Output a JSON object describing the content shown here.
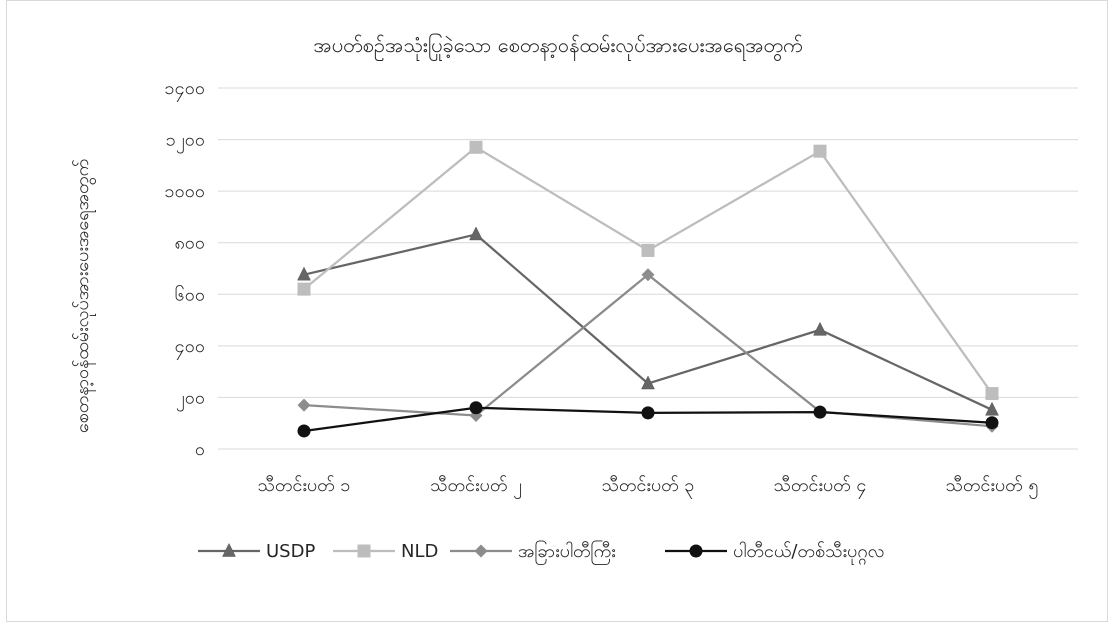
{
  "chart_data": {
    "type": "line",
    "title": "အပတ်စဉ်အသုံးပြုခဲ့သော စေတနာ့ဝန်ထမ်းလုပ်အားပေးအရေအတွက်",
    "ylabel": "စေတနာ့ဝန်ထမ်းလုပ်အားပေးအရေအတွက်",
    "xlabel": "",
    "ylim": [
      0,
      1400
    ],
    "yticks": [
      0,
      200,
      400,
      600,
      800,
      1000,
      1200,
      1400
    ],
    "ytick_labels": [
      "၀",
      "၂၀၀",
      "၄၀၀",
      "၆၀၀",
      "၈၀၀",
      "၁၀၀၀",
      "၁၂၀၀",
      "၁၄၀၀"
    ],
    "categories": [
      "သီတင်းပတ် ၁",
      "သီတင်းပတ် ၂",
      "သီတင်းပတ် ၃",
      "သီတင်းပတ် ၄",
      "သီတင်းပတ် ၅"
    ],
    "grid": true,
    "legend_position": "bottom",
    "series": [
      {
        "name": "USDP",
        "values": [
          676,
          832,
          254,
          462,
          152
        ],
        "color": "#666666",
        "marker": "triangle"
      },
      {
        "name": "NLD",
        "values": [
          620,
          1170,
          770,
          1155,
          215
        ],
        "color": "#bdbdbd",
        "marker": "square"
      },
      {
        "name": "အခြားပါတီကြီး",
        "values": [
          170,
          130,
          676,
          145,
          88
        ],
        "color": "#8c8c8c",
        "marker": "diamond"
      },
      {
        "name": "ပါတီငယ်/တစ်သီးပုဂ္ဂလ",
        "values": [
          70,
          160,
          140,
          143,
          102
        ],
        "color": "#111111",
        "marker": "circle"
      }
    ]
  }
}
